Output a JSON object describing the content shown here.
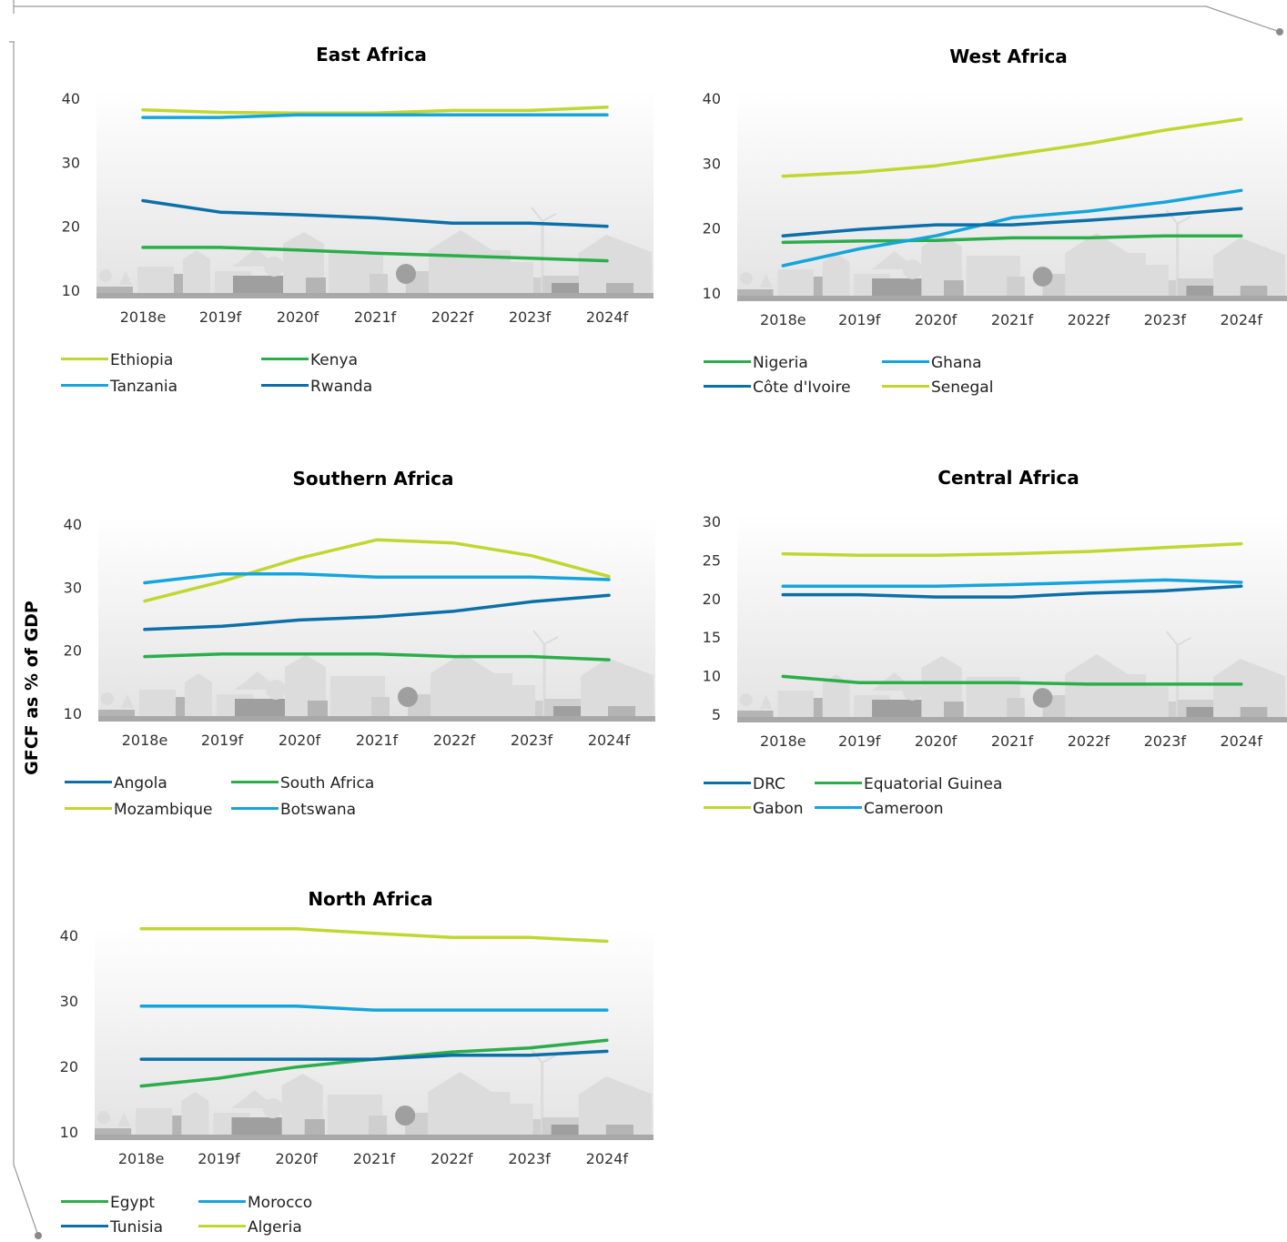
{
  "y_axis_label": "GFCF as % of GDP",
  "colors": {
    "lime": "#c0d72f",
    "green": "#2aae4a",
    "sky": "#14a5dc",
    "navy": "#0b6fa8"
  },
  "chart_data": [
    {
      "type": "line",
      "title": "East Africa",
      "categories": [
        "2018e",
        "2019f",
        "2020f",
        "2021f",
        "2022f",
        "2023f",
        "2024f"
      ],
      "ylim": [
        10,
        40
      ],
      "yticks": [
        10,
        20,
        30,
        40
      ],
      "legend_placement": "bottom",
      "grid": false,
      "series": [
        {
          "name": "Ethiopia",
          "color": "#c0d72f",
          "values": [
            38.2,
            37.8,
            37.7,
            37.7,
            38.1,
            38.1,
            38.6
          ]
        },
        {
          "name": "Kenya",
          "color": "#2aae4a",
          "values": [
            16.7,
            16.7,
            16.3,
            15.8,
            15.4,
            15.0,
            14.6
          ]
        },
        {
          "name": "Tanzania",
          "color": "#14a5dc",
          "values": [
            37.0,
            37.0,
            37.4,
            37.4,
            37.4,
            37.4,
            37.4
          ]
        },
        {
          "name": "Rwanda",
          "color": "#0b6fa8",
          "values": [
            24.0,
            22.2,
            21.8,
            21.3,
            20.5,
            20.5,
            20.0
          ]
        }
      ]
    },
    {
      "type": "line",
      "title": "West Africa",
      "categories": [
        "2018e",
        "2019f",
        "2020f",
        "2021f",
        "2022f",
        "2023f",
        "2024f"
      ],
      "ylim": [
        10,
        40
      ],
      "yticks": [
        10,
        20,
        30,
        40
      ],
      "legend_placement": "bottom",
      "grid": false,
      "series": [
        {
          "name": "Nigeria",
          "color": "#2aae4a",
          "values": [
            17.8,
            18.0,
            18.1,
            18.5,
            18.5,
            18.8,
            18.8
          ]
        },
        {
          "name": "Ghana",
          "color": "#14a5dc",
          "values": [
            14.2,
            16.8,
            18.8,
            21.6,
            22.6,
            24.0,
            25.8
          ]
        },
        {
          "name": "Côte d'Ivoire",
          "color": "#0b6fa8",
          "values": [
            18.8,
            19.8,
            20.5,
            20.5,
            21.2,
            22.0,
            23.0
          ]
        },
        {
          "name": "Senegal",
          "color": "#c0d72f",
          "values": [
            28.0,
            28.6,
            29.6,
            31.3,
            33.0,
            35.1,
            36.8
          ]
        }
      ]
    },
    {
      "type": "line",
      "title": "Southern Africa",
      "categories": [
        "2018e",
        "2019f",
        "2020f",
        "2021f",
        "2022f",
        "2023f",
        "2024f"
      ],
      "ylim": [
        10,
        40
      ],
      "yticks": [
        10,
        20,
        30,
        40
      ],
      "legend_placement": "bottom",
      "grid": false,
      "series": [
        {
          "name": "Angola",
          "color": "#0b6fa8",
          "values": [
            23.3,
            23.8,
            24.8,
            25.3,
            26.2,
            27.7,
            28.7
          ]
        },
        {
          "name": "South Africa",
          "color": "#2aae4a",
          "values": [
            19.0,
            19.4,
            19.4,
            19.4,
            19.0,
            19.0,
            18.5
          ]
        },
        {
          "name": "Mozambique",
          "color": "#c0d72f",
          "values": [
            27.8,
            30.9,
            34.6,
            37.5,
            37.0,
            35.0,
            31.7
          ]
        },
        {
          "name": "Botswana",
          "color": "#14a5dc",
          "values": [
            30.7,
            32.1,
            32.1,
            31.6,
            31.6,
            31.6,
            31.2
          ]
        }
      ]
    },
    {
      "type": "line",
      "title": "Central Africa",
      "categories": [
        "2018e",
        "2019f",
        "2020f",
        "2021f",
        "2022f",
        "2023f",
        "2024f"
      ],
      "ylim": [
        5,
        30
      ],
      "yticks": [
        5,
        10,
        15,
        20,
        25,
        30
      ],
      "legend_placement": "bottom",
      "grid": false,
      "series": [
        {
          "name": "DRC",
          "color": "#0b6fa8",
          "values": [
            20.5,
            20.5,
            20.2,
            20.2,
            20.7,
            21.0,
            21.6
          ]
        },
        {
          "name": "Equatorial Guinea",
          "color": "#2aae4a",
          "values": [
            9.9,
            9.1,
            9.1,
            9.1,
            8.9,
            8.9,
            8.9
          ]
        },
        {
          "name": "Gabon",
          "color": "#c0d72f",
          "values": [
            25.8,
            25.6,
            25.6,
            25.8,
            26.1,
            26.6,
            27.1
          ]
        },
        {
          "name": "Cameroon",
          "color": "#14a5dc",
          "values": [
            21.6,
            21.6,
            21.6,
            21.8,
            22.1,
            22.4,
            22.1
          ]
        }
      ]
    },
    {
      "type": "line",
      "title": "North Africa",
      "categories": [
        "2018e",
        "2019f",
        "2020f",
        "2021f",
        "2022f",
        "2023f",
        "2024f"
      ],
      "ylim": [
        10,
        40
      ],
      "yticks": [
        10,
        20,
        30,
        40
      ],
      "legend_placement": "bottom",
      "grid": false,
      "series": [
        {
          "name": "Egypt",
          "color": "#2aae4a",
          "values": [
            17.0,
            18.2,
            19.9,
            21.1,
            22.2,
            22.8,
            24.0
          ]
        },
        {
          "name": "Morocco",
          "color": "#14a5dc",
          "values": [
            29.2,
            29.2,
            29.2,
            28.6,
            28.6,
            28.6,
            28.6
          ]
        },
        {
          "name": "Tunisia",
          "color": "#0b6fa8",
          "values": [
            21.1,
            21.1,
            21.1,
            21.1,
            21.7,
            21.7,
            22.3
          ]
        },
        {
          "name": "Algeria",
          "color": "#c0d72f",
          "values": [
            41.0,
            41.0,
            41.0,
            40.3,
            39.7,
            39.7,
            39.1
          ]
        }
      ]
    }
  ]
}
